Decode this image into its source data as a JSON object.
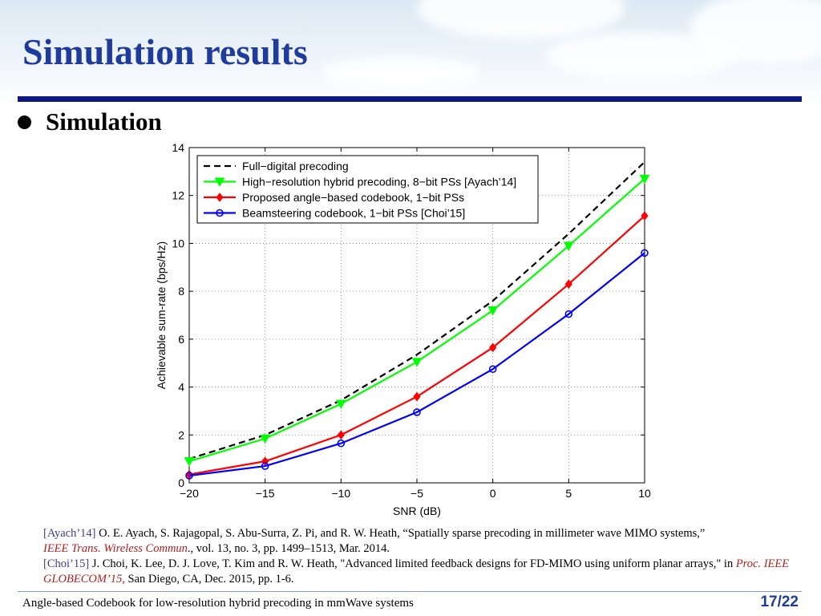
{
  "slide": {
    "title": "Simulation results",
    "bullet": "Simulation",
    "footer": "Angle-based Codebook for low-resolution hybrid precoding in mmWave systems",
    "page_current": "17",
    "page_total": "22",
    "colors": {
      "title": "#1f3c9c",
      "rule": "#0c1780"
    }
  },
  "references": [
    {
      "tag": "[Ayach’14]",
      "text": "O. E. Ayach, S. Rajagopal, S. Abu-Surra, Z. Pi, and R. W. Heath, “Spatially sparse precoding in millimeter wave MIMO systems,”",
      "venue": "IEEE Trans. Wireless Commun",
      "rest": "., vol. 13, no. 3, pp. 1499–1513, Mar. 2014."
    },
    {
      "tag": "[Choi’15]",
      "text": "J. Choi, K. Lee, D. J. Love, T. Kim and R. W. Heath, \"Advanced limited feedback designs for FD-MIMO using uniform planar arrays,\" in",
      "venue": "Proc. IEEE GLOBECOM’15,",
      "rest": "San Diego, CA, Dec. 2015, pp. 1-6."
    }
  ],
  "chart_data": {
    "type": "line",
    "xlabel": "SNR (dB)",
    "ylabel": "Achievable sum-rate (bps/Hz)",
    "xlim": [
      -20,
      10
    ],
    "ylim": [
      0,
      14
    ],
    "x_ticks": [
      -20,
      -15,
      -10,
      -5,
      0,
      5,
      10
    ],
    "x_tick_labels": [
      "−20",
      "−15",
      "−10",
      "−5",
      "0",
      "5",
      "10"
    ],
    "y_ticks": [
      0,
      2,
      4,
      6,
      8,
      10,
      12,
      14
    ],
    "grid": true,
    "legend_position": "top-left",
    "x": [
      -20,
      -15,
      -10,
      -5,
      0,
      5,
      10
    ],
    "series": [
      {
        "name": "Full−digital precoding",
        "color": "#000000",
        "dash": true,
        "marker": "none",
        "values": [
          1.0,
          2.0,
          3.45,
          5.35,
          7.6,
          10.4,
          13.4
        ]
      },
      {
        "name": "High−resolution hybrid precoding, 8−bit PSs [Ayach’14]",
        "color": "#00ff00",
        "dash": false,
        "marker": "triangle-down",
        "values": [
          0.9,
          1.85,
          3.3,
          5.05,
          7.2,
          9.9,
          12.7
        ]
      },
      {
        "name": "Proposed angle−based codebook, 1−bit PSs",
        "color": "#ff0000",
        "dash": false,
        "marker": "diamond",
        "values": [
          0.35,
          0.9,
          2.0,
          3.6,
          5.65,
          8.3,
          11.15
        ]
      },
      {
        "name": "Beamsteering codebook, 1−bit PSs [Choi’15]",
        "color": "#0000ff",
        "dash": false,
        "marker": "circle",
        "values": [
          0.3,
          0.7,
          1.65,
          2.95,
          4.75,
          7.05,
          9.6
        ]
      }
    ]
  }
}
